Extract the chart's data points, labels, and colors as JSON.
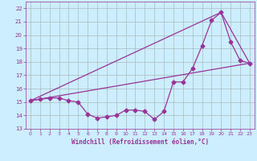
{
  "xlabel": "Windchill (Refroidissement éolien,°C)",
  "background_color": "#cceeff",
  "grid_color": "#aabbbb",
  "line_color": "#993399",
  "xlim": [
    -0.5,
    23.5
  ],
  "ylim": [
    13,
    22.5
  ],
  "yticks": [
    13,
    14,
    15,
    16,
    17,
    18,
    19,
    20,
    21,
    22
  ],
  "xticks": [
    0,
    1,
    2,
    3,
    4,
    5,
    6,
    7,
    8,
    9,
    10,
    11,
    12,
    13,
    14,
    15,
    16,
    17,
    18,
    19,
    20,
    21,
    22,
    23
  ],
  "curve1_x": [
    0,
    1,
    2,
    3,
    4,
    5,
    6,
    7,
    8,
    9,
    10,
    11,
    12,
    13,
    14,
    15,
    16,
    17,
    18,
    19,
    20,
    21,
    22,
    23
  ],
  "curve1_y": [
    15.1,
    15.2,
    15.3,
    15.3,
    15.1,
    15.0,
    14.1,
    13.8,
    13.9,
    14.0,
    14.4,
    14.4,
    14.3,
    13.7,
    14.3,
    16.5,
    16.5,
    17.5,
    19.2,
    21.1,
    21.7,
    19.5,
    18.1,
    17.9
  ],
  "curve2_x": [
    0,
    23
  ],
  "curve2_y": [
    15.1,
    17.9
  ],
  "curve3_x": [
    0,
    20,
    23
  ],
  "curve3_y": [
    15.1,
    21.7,
    17.9
  ]
}
